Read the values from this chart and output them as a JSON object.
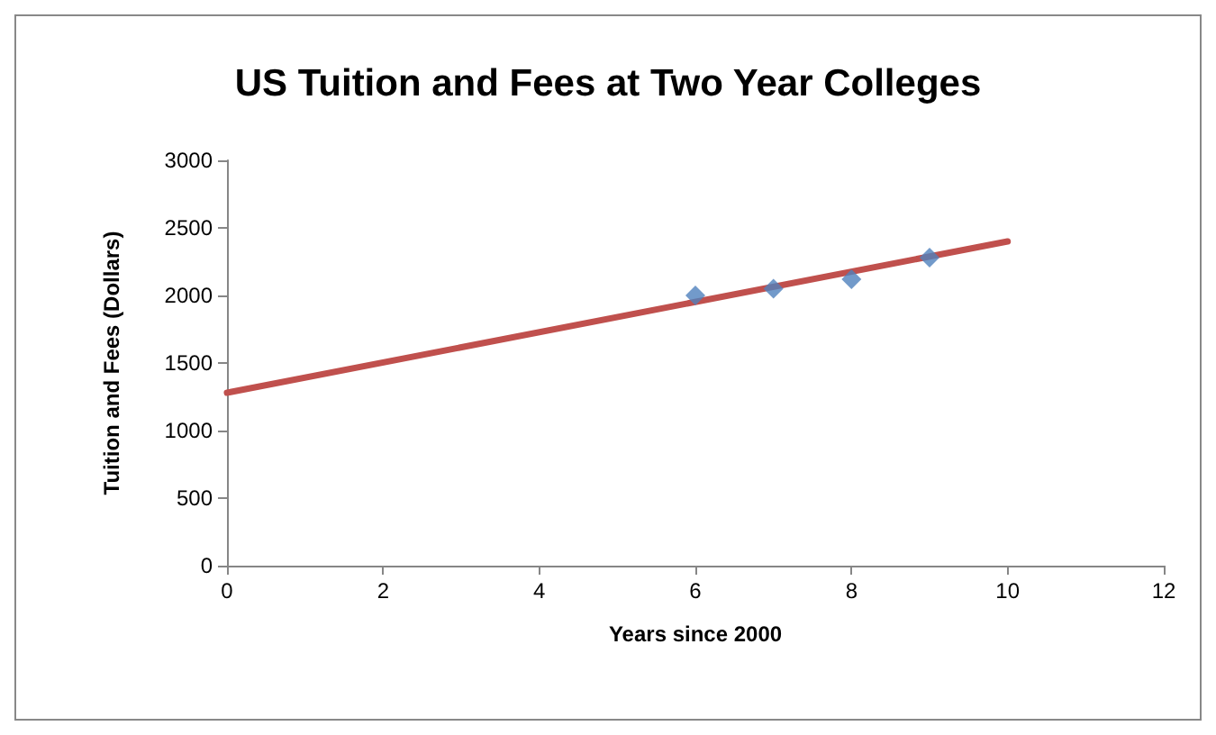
{
  "chart_data": {
    "type": "scatter",
    "title": "US Tuition and Fees at Two Year Colleges",
    "xlabel": "Years since 2000",
    "ylabel": "Tuition and Fees (Dollars)",
    "series": [
      {
        "color": "#4f81bd",
        "x": [
          6,
          7,
          8,
          9
        ],
        "values": [
          2000,
          2050,
          2120,
          2280
        ],
        "marker": "diamond"
      },
      {
        "type": "line",
        "color": "#c0504d",
        "x": [
          0,
          10
        ],
        "values": [
          1280,
          2400
        ],
        "marker": "none",
        "line_style": "solid"
      }
    ],
    "xlim": [
      0,
      12
    ],
    "xticks": [
      0,
      2,
      4,
      6,
      8,
      10,
      12
    ],
    "ylim": [
      0,
      3000
    ],
    "yticks": [
      0,
      500,
      1000,
      1500,
      2000,
      2500,
      3000
    ],
    "grid": false
  }
}
